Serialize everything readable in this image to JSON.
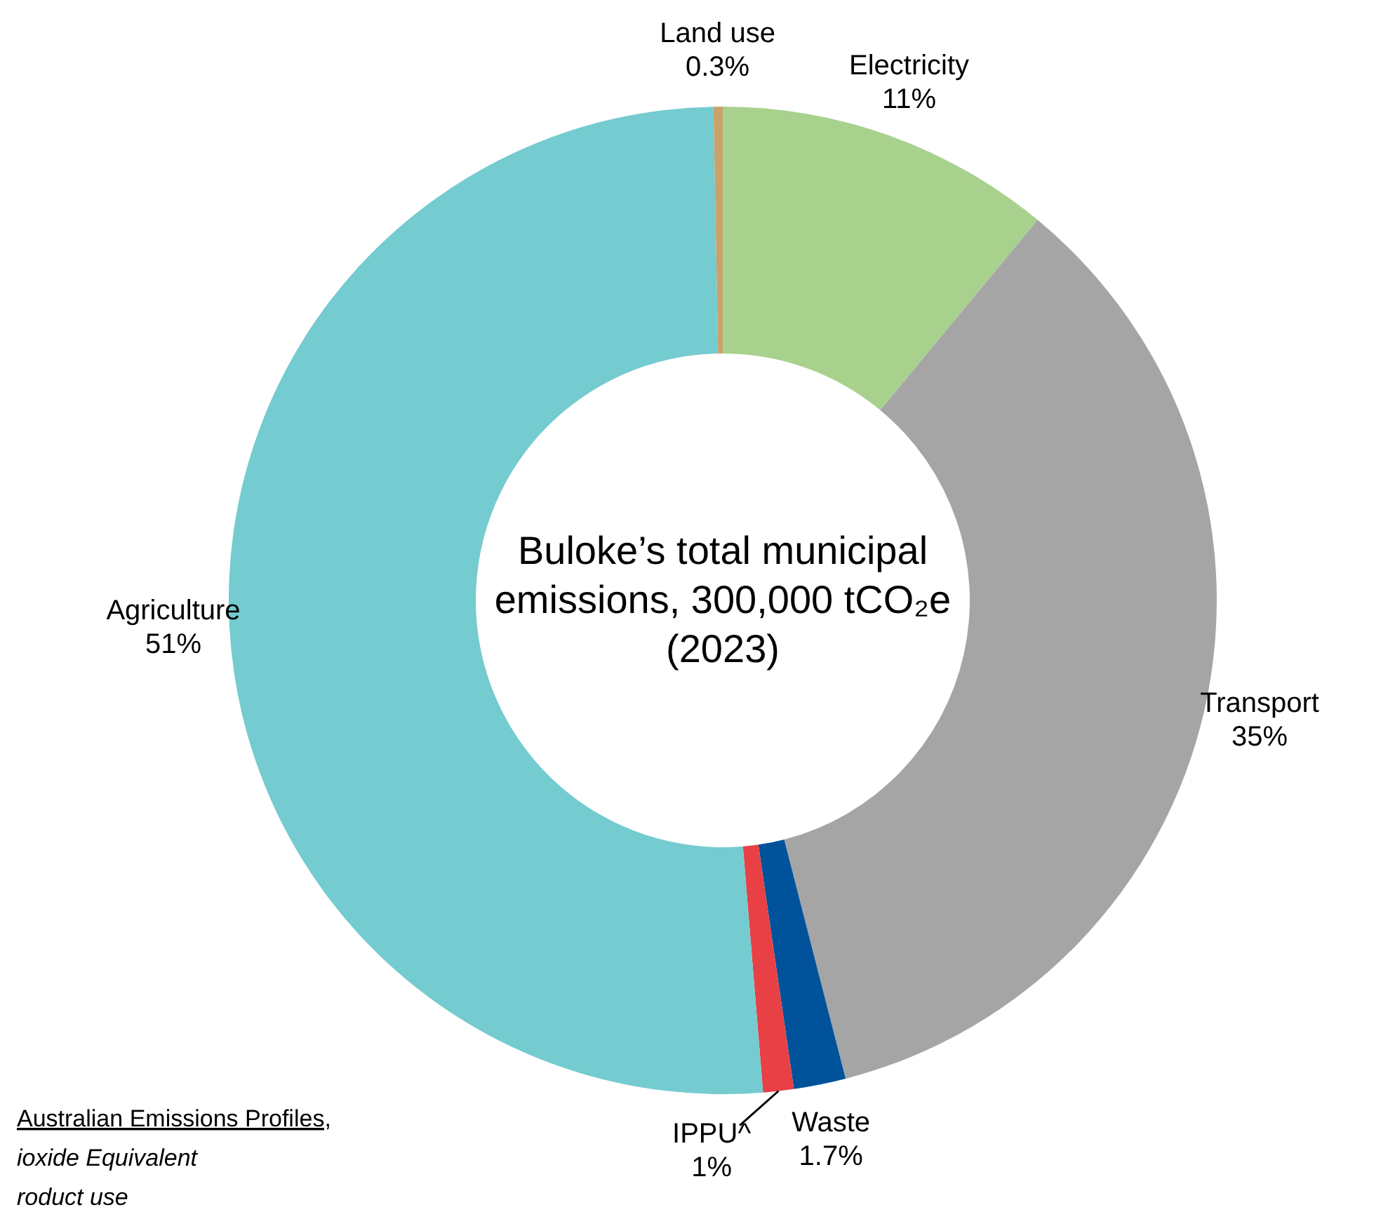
{
  "chart_data": {
    "type": "donut",
    "title": "Buloke’s total municipal emissions, 300,000 tCO₂e (2023)",
    "categories": [
      "Electricity",
      "Transport",
      "Waste",
      "IPPU^",
      "Agriculture",
      "Land use"
    ],
    "values": [
      11,
      35,
      1.7,
      1,
      51,
      0.3
    ],
    "value_labels": [
      "11%",
      "35%",
      "1.7%",
      "1%",
      "51%",
      "0.3%"
    ],
    "colors": [
      "#a9d18e",
      "#a5a5a6",
      "#00539b",
      "#e84045",
      "#74cbd0",
      "#c9a26b"
    ],
    "annotations": [
      "Australian Emissions Profiles,",
      "ioxide Equivalent",
      "roduct use"
    ]
  }
}
